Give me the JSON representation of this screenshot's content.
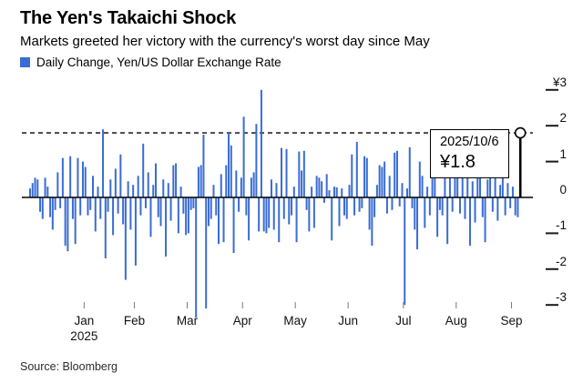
{
  "header": {
    "title": "The Yen's Takaichi Shock",
    "subtitle": "Markets greeted her victory with the currency's worst day since May"
  },
  "legend": {
    "label": "Daily Change, Yen/US Dollar Exchange Rate",
    "swatch_color": "#3a6cd4"
  },
  "annotation": {
    "date": "2025/10/6",
    "value_label": "¥1.8"
  },
  "axes": {
    "y_tick_labels": [
      "¥3",
      "2",
      "1",
      "0",
      "-1",
      "-2",
      "-3"
    ],
    "y_tick_values": [
      3,
      2,
      1,
      0,
      -1,
      -2,
      -3
    ],
    "x_ticks": [
      "Jan",
      "Feb",
      "Mar",
      "Apr",
      "May",
      "Jun",
      "Jul",
      "Aug",
      "Sep"
    ],
    "year_label": "2025"
  },
  "footer": {
    "source": "Source: Bloomberg"
  },
  "chart_data": {
    "type": "bar",
    "title": "Daily Change, Yen/US Dollar Exchange Rate",
    "unit": "yen per US dollar, daily change",
    "ylim": [
      -3.5,
      3
    ],
    "grid": false,
    "legend_position": "top-left",
    "axis_side": "right",
    "reference_line_value": 1.8,
    "bar_color": "#3a6cd4",
    "highlight": {
      "date": "2025/10/6",
      "value": 1.8,
      "color": "#000000",
      "marker": "open-circle"
    },
    "months": [
      {
        "label": "Jan",
        "year": 2025,
        "values": [
          0.25,
          0.4,
          0.55,
          0.5,
          -0.4,
          -0.6,
          0.55,
          0.3,
          -0.55,
          -0.9,
          -0.35,
          0.7,
          -0.3,
          1.1,
          -1.35,
          -1.5,
          1.15,
          -0.6,
          -1.3,
          1.1,
          -0.5,
          1.0
        ]
      },
      {
        "label": "Feb",
        "year": 2025,
        "values": [
          0.85,
          -0.5,
          -0.35,
          0.6,
          -0.95,
          0.3,
          -0.6,
          1.9,
          -1.7,
          -0.4,
          0.5,
          -1.05,
          0.8,
          -0.45,
          1.2,
          -0.75,
          -2.3,
          0.45,
          -0.9,
          0.35
        ]
      },
      {
        "label": "Mar",
        "year": 2025,
        "values": [
          -1.9,
          0.6,
          -0.5,
          1.5,
          -0.3,
          0.7,
          -1.1,
          0.35,
          0.95,
          -0.55,
          -0.8,
          0.5,
          -1.65,
          0.4,
          -0.65,
          0.9,
          0.95,
          -1.0,
          0.3,
          -0.45,
          -1.05
        ]
      },
      {
        "label": "Apr",
        "year": 2025,
        "values": [
          -1.0,
          -0.35,
          -0.3,
          -3.35,
          0.85,
          0.9,
          1.75,
          -3.1,
          -0.8,
          -0.6,
          0.35,
          -0.5,
          -1.3,
          0.65,
          -1.25,
          0.9,
          1.8,
          1.45,
          -1.55,
          0.75,
          -0.4,
          0.55
        ]
      },
      {
        "label": "May",
        "year": 2025,
        "values": [
          2.25,
          -0.5,
          -1.2,
          0.55,
          0.7,
          2.05,
          -0.95,
          3.0,
          -0.95,
          -1.0,
          -0.85,
          0.5,
          -0.9,
          0.4,
          -1.25,
          1.38,
          -0.6,
          1.35,
          -0.75,
          -0.5,
          0.3
        ]
      },
      {
        "label": "Jun",
        "year": 2025,
        "values": [
          -1.25,
          1.28,
          0.75,
          1.3,
          -0.35,
          -0.95,
          0.3,
          -0.85,
          0.6,
          0.55,
          0.45,
          -0.15,
          0.65,
          0.2,
          -1.2,
          0.3,
          0.28,
          -0.8,
          0.25,
          -0.5,
          -0.6
        ]
      },
      {
        "label": "Jul",
        "year": 2025,
        "values": [
          0.35,
          1.2,
          -0.5,
          1.55,
          -0.4,
          -0.3,
          1.15,
          1.1,
          -0.9,
          -1.35,
          -0.55,
          0.35,
          0.9,
          0.85,
          1.0,
          -0.45,
          0.6,
          -0.35,
          1.25,
          1.3,
          -0.25,
          0.4
        ]
      },
      {
        "label": "Aug",
        "year": 2025,
        "values": [
          -3.0,
          0.25,
          1.4,
          -0.3,
          -0.9,
          -1.45,
          1.0,
          0.6,
          -0.85,
          0.3,
          -0.5,
          0.65,
          0.6,
          -1.1,
          -0.35,
          -0.5,
          0.7,
          -1.3,
          0.6,
          -0.4,
          0.55
        ]
      },
      {
        "label": "Sep",
        "year": 2025,
        "values": [
          0.65,
          -0.45,
          0.7,
          -0.6,
          0.8,
          -1.35,
          0.45,
          -0.7,
          0.6,
          0.75,
          -0.55,
          -1.25,
          0.5,
          0.85,
          -0.4,
          0.7,
          -0.65,
          0.35,
          0.95,
          -0.5,
          0.4,
          -0.3
        ]
      },
      {
        "label": "Oct",
        "year": 2025,
        "values": [
          0.3,
          -0.5,
          -0.55,
          1.8
        ]
      }
    ]
  }
}
